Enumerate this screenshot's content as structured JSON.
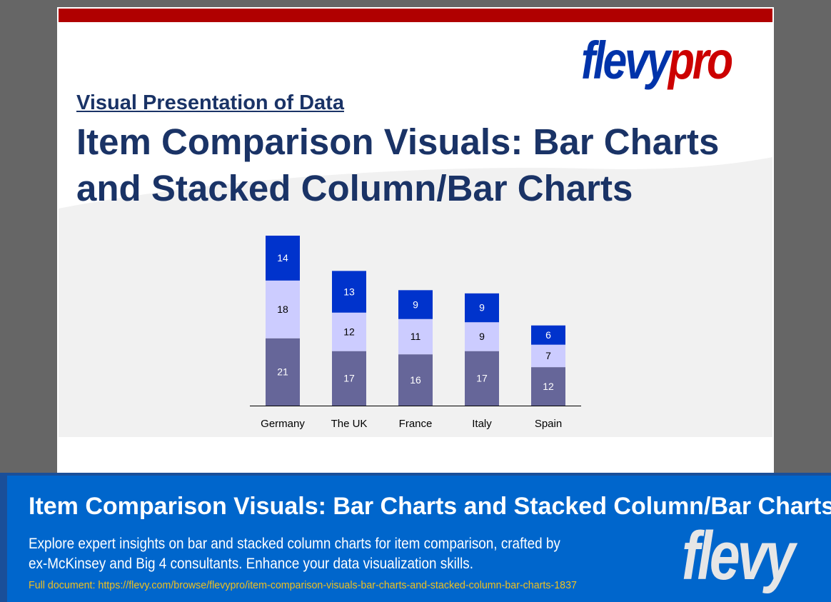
{
  "logo": {
    "part1": "flevy",
    "part2": "pro"
  },
  "subtitle": "Visual Presentation of Data",
  "title": [
    "Item Comparison Visuals: Bar Charts",
    "and Stacked Column/Bar Charts"
  ],
  "chart_data": {
    "type": "stacked_bar",
    "categories": [
      "Germany",
      "The UK",
      "France",
      "Italy",
      "Spain"
    ],
    "series": [
      {
        "color": "#666699",
        "label_color": "#ffffff",
        "values": [
          21,
          17,
          16,
          17,
          12
        ]
      },
      {
        "color": "#ccccff",
        "label_color": "#000000",
        "values": [
          18,
          12,
          11,
          9,
          7
        ]
      },
      {
        "color": "#0033cc",
        "label_color": "#ffffff",
        "values": [
          14,
          13,
          9,
          9,
          6
        ]
      }
    ]
  },
  "banner": {
    "title": "Item Comparison Visuals: Bar Charts and Stacked Column/Bar Charts",
    "description": [
      "Explore expert insights on bar and stacked column charts for item comparison, crafted by",
      "ex-McKinsey and Big 4 consultants. Enhance your data visualization skills."
    ],
    "link": "Full document: https://flevy.com/browse/flevypro/item-comparison-visuals-bar-charts-and-stacked-column-bar-charts-1837",
    "logo": "flevy"
  }
}
